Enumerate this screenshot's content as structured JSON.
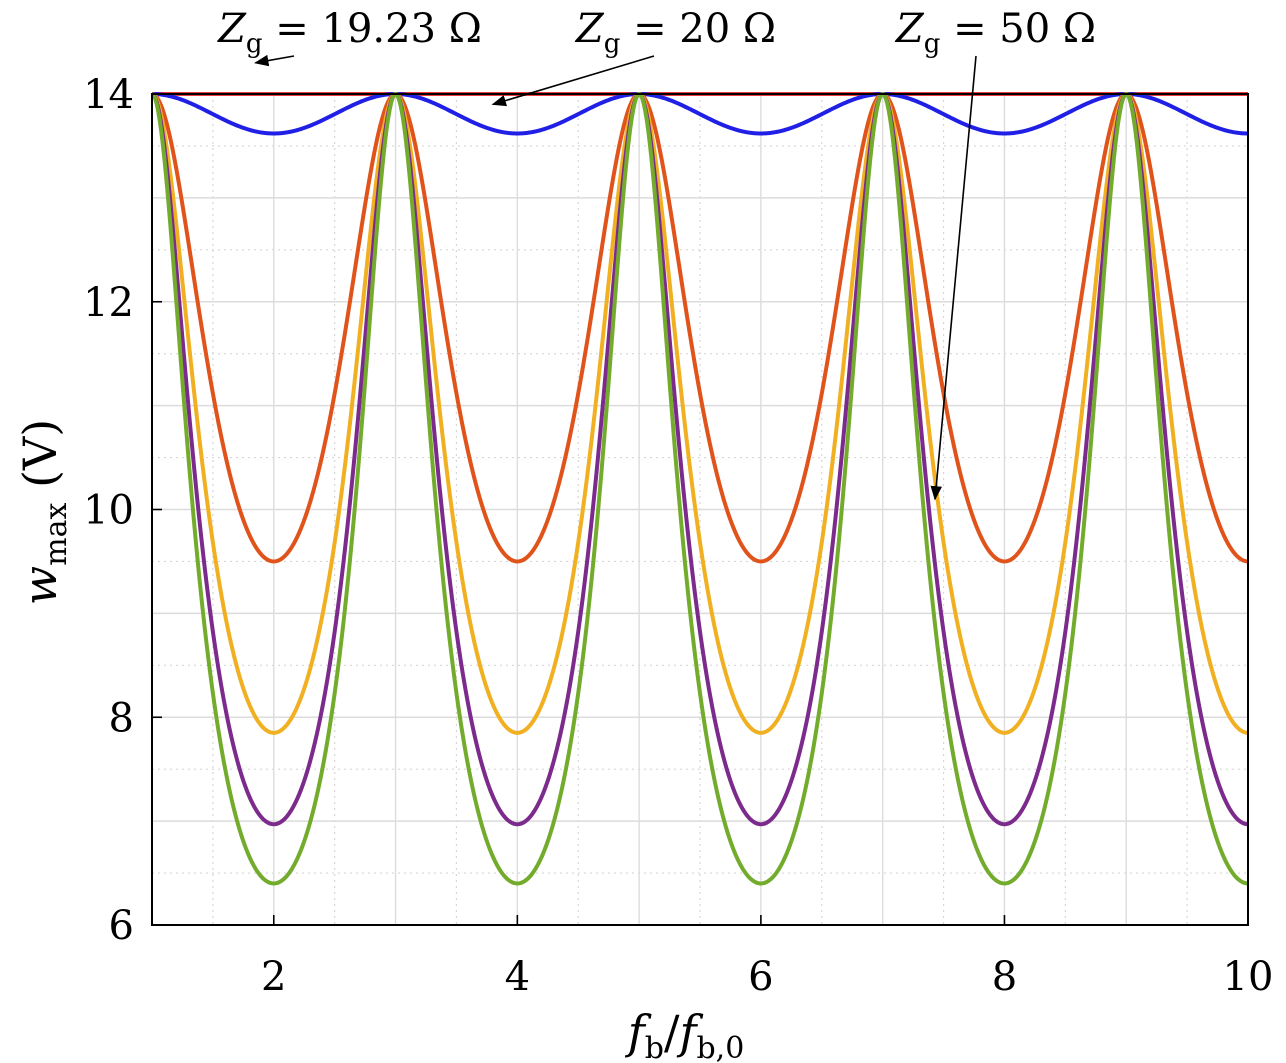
{
  "chart_data": {
    "type": "line",
    "xlabel": {
      "main": "f",
      "sub": "b",
      "slash": "/",
      "main2": "f",
      "sub2": "b,0"
    },
    "ylabel": {
      "main": "w",
      "sub": "max",
      "unit": " (V)"
    },
    "xlim": [
      1,
      10
    ],
    "ylim": [
      6,
      14
    ],
    "xticks": [
      2,
      4,
      6,
      8,
      10
    ],
    "yticks": [
      6,
      8,
      10,
      12,
      14
    ],
    "grid": {
      "major": true,
      "minor": true
    },
    "peak_value": 14,
    "series": [
      {
        "color": "#ee3b3b",
        "min": 14.0
      },
      {
        "color": "#1f1fe6",
        "min": 13.62
      },
      {
        "color": "#e0541c",
        "min": 9.5
      },
      {
        "color": "#f0b022",
        "min": 7.85
      },
      {
        "color": "#7c2b8c",
        "min": 6.97
      },
      {
        "color": "#73ac2c",
        "min": 6.4
      }
    ],
    "annotations": [
      {
        "text_main": "Z",
        "text_sub": "g",
        "text_rest": " = 19.23 Ω",
        "arrow_to": [
          1.85,
          14.3
        ]
      },
      {
        "text_main": "Z",
        "text_sub": "g",
        "text_rest": " = 20 Ω",
        "arrow_to": [
          3.8,
          13.9
        ]
      },
      {
        "text_main": "Z",
        "text_sub": "g",
        "text_rest": " = 50 Ω",
        "arrow_to": [
          7.43,
          10.1
        ]
      }
    ]
  }
}
